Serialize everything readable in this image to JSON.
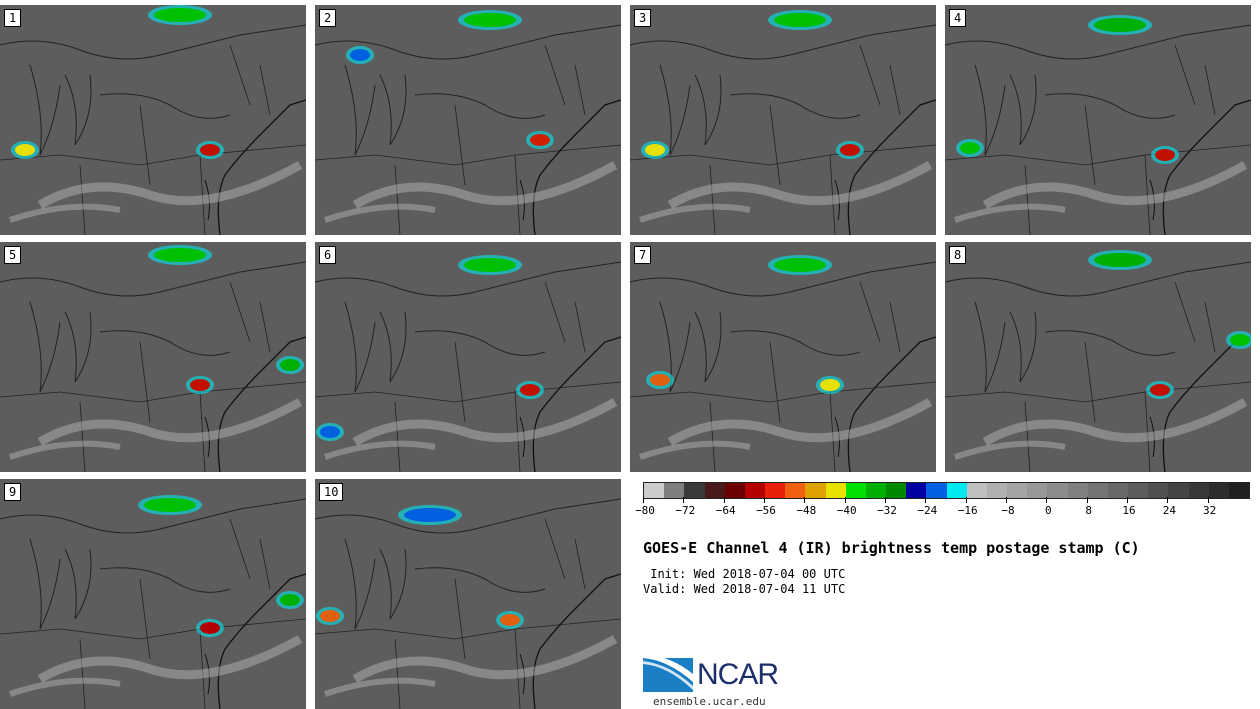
{
  "panels": [
    "1",
    "2",
    "3",
    "4",
    "5",
    "6",
    "7",
    "8",
    "9",
    "10"
  ],
  "colorbar": {
    "colors": [
      "#cccccc",
      "#7f7f7f",
      "#3a3a3a",
      "#4a1a1a",
      "#6b0000",
      "#b30000",
      "#e8200a",
      "#f06010",
      "#e0a000",
      "#e8e000",
      "#00e000",
      "#00b000",
      "#008a00",
      "#0000a0",
      "#0060e0",
      "#00e8f0",
      "#c0c0c0",
      "#b0b0b0",
      "#a4a4a4",
      "#989898",
      "#8c8c8c",
      "#808080",
      "#747474",
      "#686868",
      "#5c5c5c",
      "#505050",
      "#444444",
      "#383838",
      "#2c2c2c",
      "#202020"
    ],
    "tick_labels": [
      "−80",
      "−72",
      "−64",
      "−56",
      "−48",
      "−40",
      "−32",
      "−24",
      "−16",
      "−8",
      "0",
      "8",
      "16",
      "24",
      "32"
    ],
    "min": -80,
    "max": 40
  },
  "title": "GOES-E Channel 4 (IR) brightness temp postage stamp (C)",
  "init_line": " Init: Wed 2018-07-04 00 UTC",
  "valid_line": "Valid: Wed 2018-07-04 11 UTC",
  "logo": {
    "text": "NCAR",
    "url": "ensemble.ucar.edu"
  }
}
